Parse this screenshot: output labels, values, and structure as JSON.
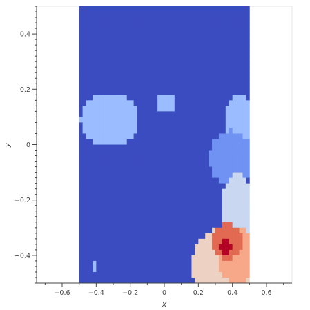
{
  "chart_data": {
    "type": "heatmap",
    "title": "",
    "xlabel": "x",
    "ylabel": "y",
    "xlim": [
      -0.75,
      0.75
    ],
    "ylim": [
      -0.5,
      0.5
    ],
    "extent": {
      "x": [
        -0.5,
        0.5
      ],
      "y": [
        -0.5,
        0.5
      ]
    },
    "x_ticks": [
      -0.6,
      -0.4,
      -0.2,
      0,
      0.2,
      0.4,
      0.6
    ],
    "x_tick_labels": [
      "−0.6",
      "−0.4",
      "−0.2",
      "0",
      "0.2",
      "0.4",
      "0.6"
    ],
    "y_ticks": [
      -0.4,
      -0.2,
      0,
      0.2,
      0.4
    ],
    "y_tick_labels": [
      "−0.4",
      "−0.2",
      "0",
      "0.2",
      "0.4"
    ],
    "grid": false,
    "legend": "none",
    "colormap": "coolwarm",
    "background_value": 0.0,
    "palette": [
      "#3b4cc0",
      "#6f92f3",
      "#9bbcff",
      "#c9d7f0",
      "#edd1c2",
      "#f7a889",
      "#e26952",
      "#b40426"
    ],
    "regions": [
      {
        "shape": "ellipse",
        "cx": -0.32,
        "cy": 0.09,
        "rx": 0.17,
        "ry": 0.095,
        "value": 0.29
      },
      {
        "shape": "ellipse",
        "cx": 0.01,
        "cy": 0.152,
        "rx": 0.06,
        "ry": 0.032,
        "value": 0.29
      },
      {
        "shape": "ellipse",
        "cx": 0.44,
        "cy": 0.06,
        "rx": 0.085,
        "ry": 0.13,
        "value": 0.29
      },
      {
        "shape": "ellipse",
        "cx": 0.39,
        "cy": -0.05,
        "rx": 0.13,
        "ry": 0.1,
        "value": 0.14
      },
      {
        "shape": "ellipse",
        "cx": 0.43,
        "cy": -0.26,
        "rx": 0.1,
        "ry": 0.16,
        "value": 0.43
      },
      {
        "shape": "ellipse",
        "cx": 0.36,
        "cy": -0.44,
        "rx": 0.2,
        "ry": 0.14,
        "value": 0.57
      },
      {
        "shape": "ellipse",
        "cx": 0.43,
        "cy": -0.4,
        "rx": 0.12,
        "ry": 0.1,
        "value": 0.71
      },
      {
        "shape": "ellipse",
        "cx": 0.37,
        "cy": -0.35,
        "rx": 0.085,
        "ry": 0.065,
        "value": 0.86
      },
      {
        "shape": "ellipse",
        "cx": 0.36,
        "cy": -0.37,
        "rx": 0.04,
        "ry": 0.028,
        "value": 1.0
      },
      {
        "shape": "ellipse",
        "cx": -0.41,
        "cy": -0.44,
        "rx": 0.018,
        "ry": 0.012,
        "value": 0.29
      }
    ]
  }
}
